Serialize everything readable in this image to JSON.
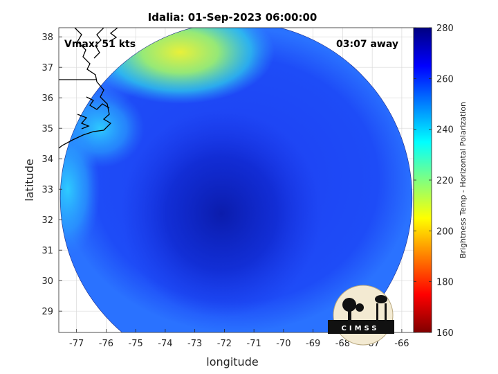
{
  "figure": {
    "title": "Idalia: 01-Sep-2023 06:00:00",
    "vmax_label": "Vmax: 51 kts",
    "time_away_label": "03:07 away",
    "logo_text": "CIMSS"
  },
  "chart_data": {
    "type": "heatmap",
    "title": "Idalia: 01-Sep-2023 06:00:00",
    "xlabel": "longitude",
    "ylabel": "latitude",
    "xlim": [
      -77.6,
      -65.6
    ],
    "ylim": [
      28.3,
      38.3
    ],
    "xticks": [
      -77,
      -76,
      -75,
      -74,
      -73,
      -72,
      -71,
      -70,
      -69,
      -68,
      -67,
      -66
    ],
    "yticks": [
      29,
      30,
      31,
      32,
      33,
      34,
      35,
      36,
      37,
      38
    ],
    "grid": true,
    "swath": {
      "center_lon": -71.6,
      "center_lat": 32.7,
      "radius_deg": 5.95
    },
    "storm_center": {
      "lon": -72.1,
      "lat": 32.2,
      "tb_k": 267
    },
    "tb_fields": [
      {
        "feature": "ambient",
        "tb_k": 255
      },
      {
        "feature": "dry-air northwest",
        "lon": -73.5,
        "lat": 37.5,
        "tb_k": 205
      },
      {
        "feature": "coastal swath edge",
        "lon": -76.2,
        "lat": 35.0,
        "tb_k": 238
      },
      {
        "feature": "western edge",
        "lon": -77.3,
        "lat": 33.0,
        "tb_k": 240
      }
    ],
    "colorbar": {
      "label": "Brightness Temp - Horizontal Polarization",
      "min": 160,
      "max": 280,
      "ticks": [
        160,
        180,
        200,
        220,
        240,
        260,
        280
      ],
      "colormap": "jet"
    }
  }
}
